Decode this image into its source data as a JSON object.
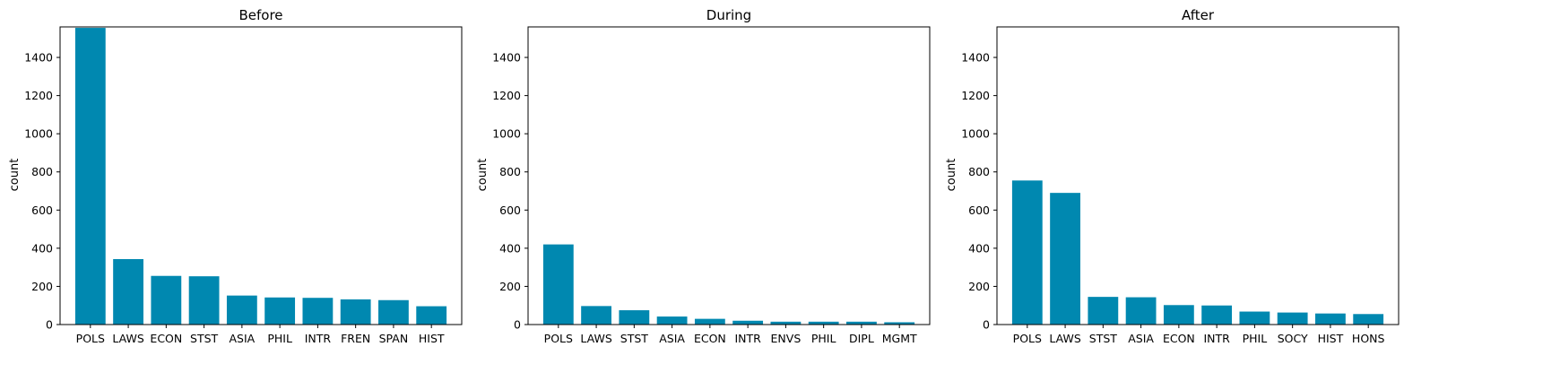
{
  "chart_data": [
    {
      "type": "bar",
      "title": "Before",
      "xlabel": "",
      "ylabel": "count",
      "ylim": [
        0,
        1560
      ],
      "yticks": [
        0,
        200,
        400,
        600,
        800,
        1000,
        1200,
        1400
      ],
      "grid": false,
      "legend": "none",
      "color": "#0088b0",
      "categories": [
        "POLS",
        "LAWS",
        "ECON",
        "STST",
        "ASIA",
        "PHIL",
        "INTR",
        "FREN",
        "SPAN",
        "HIST"
      ],
      "values": [
        1555,
        343,
        255,
        253,
        152,
        142,
        140,
        132,
        128,
        96
      ]
    },
    {
      "type": "bar",
      "title": "During",
      "xlabel": "",
      "ylabel": "count",
      "ylim": [
        0,
        1560
      ],
      "yticks": [
        0,
        200,
        400,
        600,
        800,
        1000,
        1200,
        1400
      ],
      "grid": false,
      "legend": "none",
      "color": "#0088b0",
      "categories": [
        "POLS",
        "LAWS",
        "STST",
        "ASIA",
        "ECON",
        "INTR",
        "ENVS",
        "PHIL",
        "DIPL",
        "MGMT"
      ],
      "values": [
        420,
        97,
        75,
        42,
        30,
        20,
        15,
        15,
        15,
        12
      ]
    },
    {
      "type": "bar",
      "title": "After",
      "xlabel": "",
      "ylabel": "count",
      "ylim": [
        0,
        1560
      ],
      "yticks": [
        0,
        200,
        400,
        600,
        800,
        1000,
        1200,
        1400
      ],
      "grid": false,
      "legend": "none",
      "color": "#0088b0",
      "categories": [
        "POLS",
        "LAWS",
        "STST",
        "ASIA",
        "ECON",
        "INTR",
        "PHIL",
        "SOCY",
        "HIST",
        "HONS"
      ],
      "values": [
        755,
        690,
        145,
        143,
        102,
        100,
        68,
        63,
        58,
        55
      ]
    }
  ]
}
